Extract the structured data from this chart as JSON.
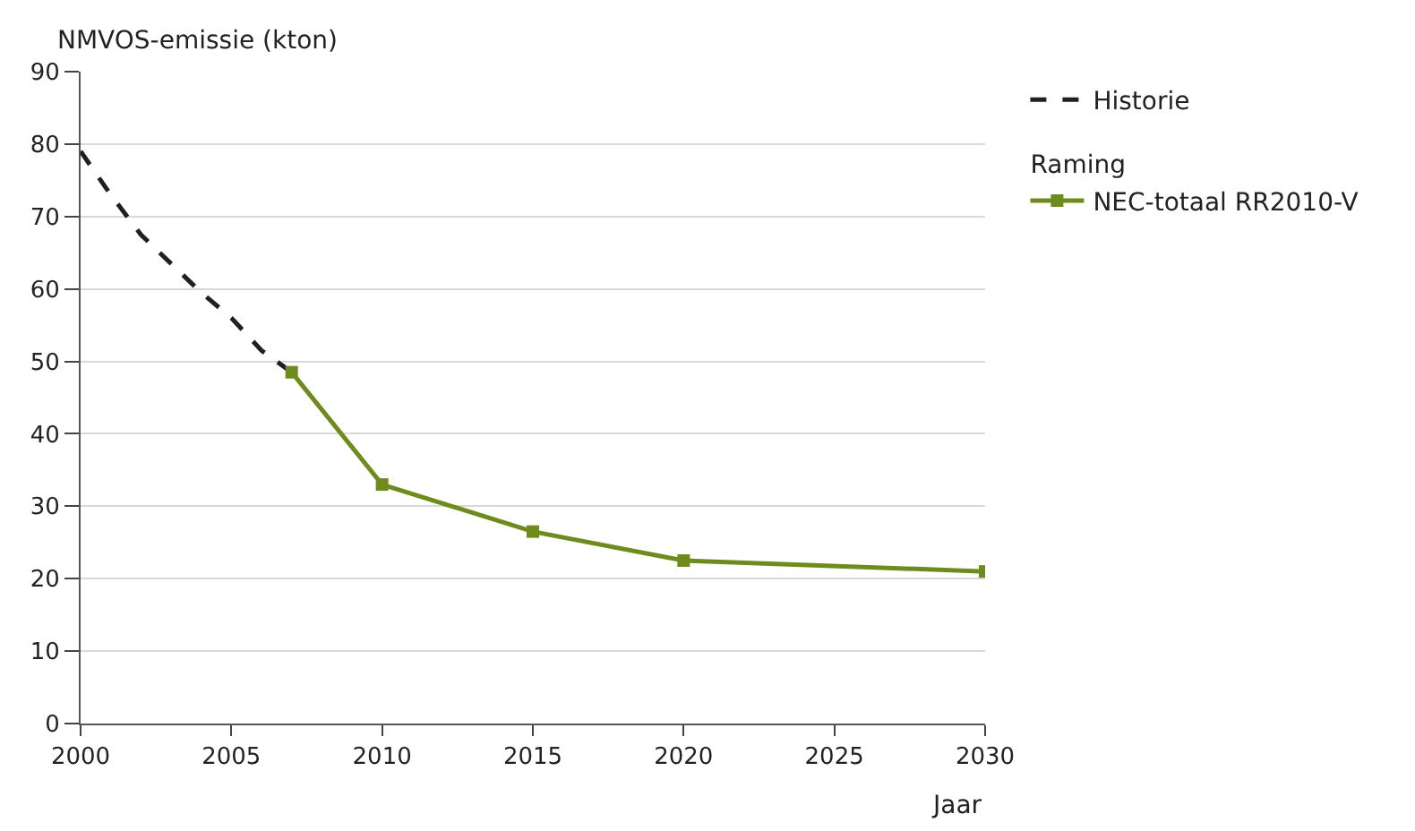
{
  "chart_data": {
    "type": "line",
    "ylabel": "NMVOS-emissie (kton)",
    "xlabel": "Jaar",
    "annotations": [
      "Raming"
    ],
    "xlim": [
      2000,
      2030
    ],
    "xticks": [
      2000,
      2005,
      2010,
      2015,
      2020,
      2025,
      2030
    ],
    "ylim": [
      0,
      90
    ],
    "yticks": [
      0,
      10,
      20,
      30,
      40,
      50,
      60,
      70,
      80,
      90
    ],
    "grid": "y",
    "legend": "top right",
    "series": [
      {
        "name": "Historie",
        "color": "#231f20",
        "line_style": "dashed",
        "marker": "none",
        "x": [
          2000,
          2001,
          2002,
          2003,
          2004,
          2005,
          2006,
          2007
        ],
        "values": [
          79,
          73,
          67.5,
          63.5,
          59.5,
          56,
          51.5,
          48.5
        ]
      },
      {
        "name": "NEC-totaal RR2010-V",
        "color": "#6e8c1e",
        "line_style": "solid",
        "marker": "square",
        "x": [
          2007,
          2010,
          2015,
          2020,
          2030
        ],
        "values": [
          48.5,
          33,
          26.5,
          22.5,
          21
        ]
      }
    ]
  }
}
